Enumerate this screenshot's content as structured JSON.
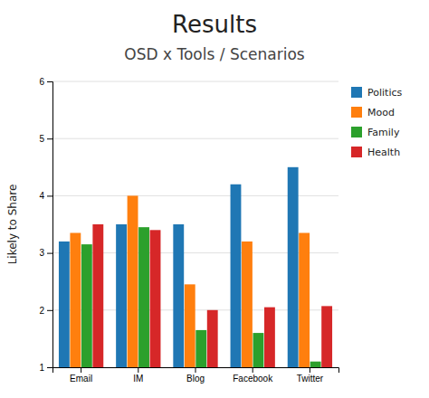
{
  "chart_data": {
    "type": "bar",
    "title": "Results",
    "subtitle": "OSD x Tools / Scenarios",
    "categories": [
      "Email",
      "IM",
      "Blog",
      "Facebook",
      "Twitter"
    ],
    "series": [
      {
        "name": "Politics",
        "values": [
          3.2,
          3.5,
          3.5,
          4.2,
          4.5
        ]
      },
      {
        "name": "Mood",
        "values": [
          3.35,
          4.0,
          2.45,
          3.2,
          3.35
        ]
      },
      {
        "name": "Family",
        "values": [
          3.15,
          3.45,
          1.65,
          1.6,
          1.1
        ]
      },
      {
        "name": "Health",
        "values": [
          3.5,
          3.4,
          2.0,
          2.05,
          2.07
        ]
      }
    ],
    "y_label": "Likely to Share",
    "ylim": [
      1,
      6
    ],
    "yticks": [
      1,
      2,
      3,
      4,
      5,
      6
    ],
    "grid": true,
    "legend": "right"
  }
}
